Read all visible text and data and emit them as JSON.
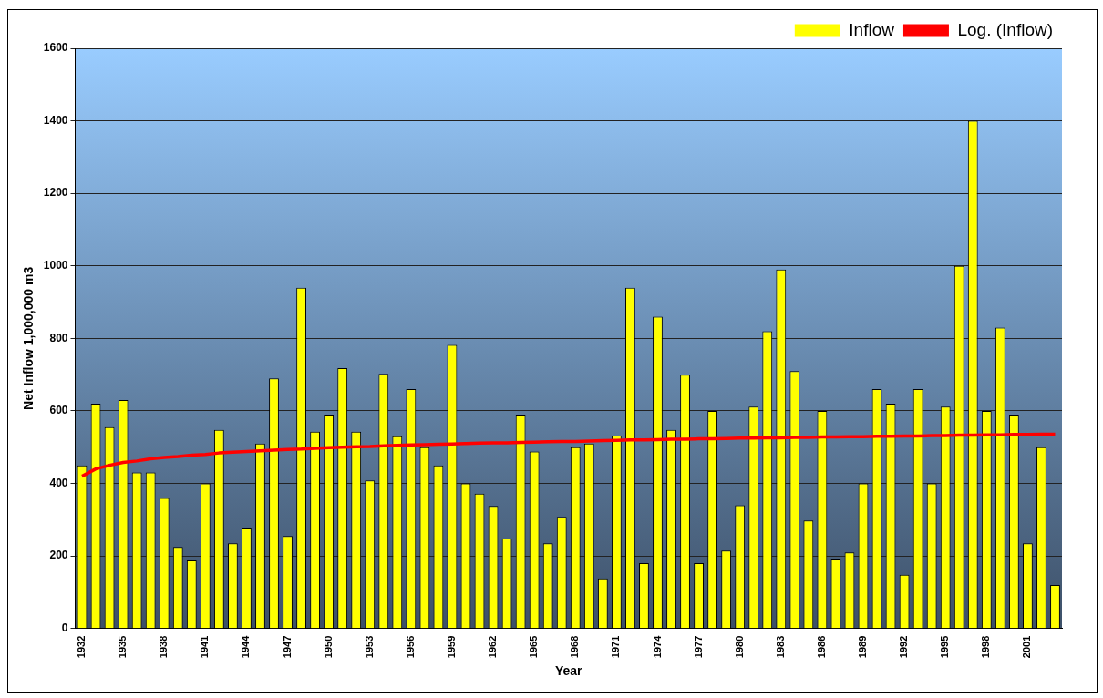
{
  "chart_data": {
    "type": "bar",
    "xlabel": "Year",
    "ylabel": "Net Inflow 1,000,000 m3",
    "categories": [
      "1932",
      null,
      null,
      "1935",
      null,
      null,
      "1938",
      null,
      null,
      "1941",
      null,
      null,
      "1944",
      null,
      null,
      "1947",
      null,
      null,
      "1950",
      null,
      null,
      "1953",
      null,
      null,
      "1956",
      null,
      null,
      "1959",
      null,
      null,
      "1962",
      null,
      null,
      "1965",
      null,
      null,
      "1968",
      null,
      null,
      "1971",
      null,
      null,
      "1974",
      null,
      null,
      "1977",
      null,
      null,
      "1980",
      null,
      null,
      "1983",
      null,
      null,
      "1986",
      null,
      null,
      "1989",
      null,
      null,
      "1992",
      null,
      null,
      "1995",
      null,
      null,
      "1998",
      null,
      null,
      "2001",
      null,
      null
    ],
    "series": [
      {
        "name": "Inflow",
        "color": "#ffff00",
        "values": [
          450,
          620,
          555,
          630,
          430,
          430,
          360,
          225,
          188,
          400,
          548,
          235,
          278,
          510,
          690,
          255,
          940,
          543,
          590,
          718,
          543,
          408,
          702,
          530,
          660,
          500,
          450,
          782,
          400,
          372,
          338,
          248,
          590,
          488,
          235,
          308,
          500,
          510,
          138,
          532,
          940,
          180,
          860,
          548,
          700,
          180,
          600,
          215,
          340,
          612,
          820,
          990,
          710,
          298,
          600,
          190,
          210,
          400,
          660,
          620,
          148,
          660,
          400,
          612,
          1000,
          1400,
          600,
          830,
          590,
          235,
          500,
          120
        ]
      },
      {
        "name": "Log. (Inflow)",
        "type": "line",
        "color": "#ff0000",
        "values": [
          420,
          440,
          450,
          458,
          462,
          468,
          472,
          474,
          478,
          480,
          484,
          486,
          488,
          490,
          492,
          494,
          495,
          497,
          499,
          500,
          501,
          502,
          504,
          505,
          506,
          507,
          508,
          509,
          510,
          511,
          512,
          512,
          513,
          514,
          515,
          516,
          516,
          517,
          518,
          519,
          520,
          520,
          521,
          522,
          522,
          523,
          523,
          524,
          525,
          525,
          526,
          526,
          527,
          527,
          528,
          528,
          529,
          529,
          530,
          530,
          531,
          531,
          532,
          532,
          533,
          533,
          534,
          534,
          535,
          535,
          536,
          536
        ]
      }
    ],
    "ylim": [
      0,
      1600
    ],
    "yticks": [
      0,
      200,
      400,
      600,
      800,
      1000,
      1200,
      1400,
      1600
    ],
    "grid": "y",
    "legend": "top right",
    "marker": "none",
    "line_style": "solid"
  }
}
